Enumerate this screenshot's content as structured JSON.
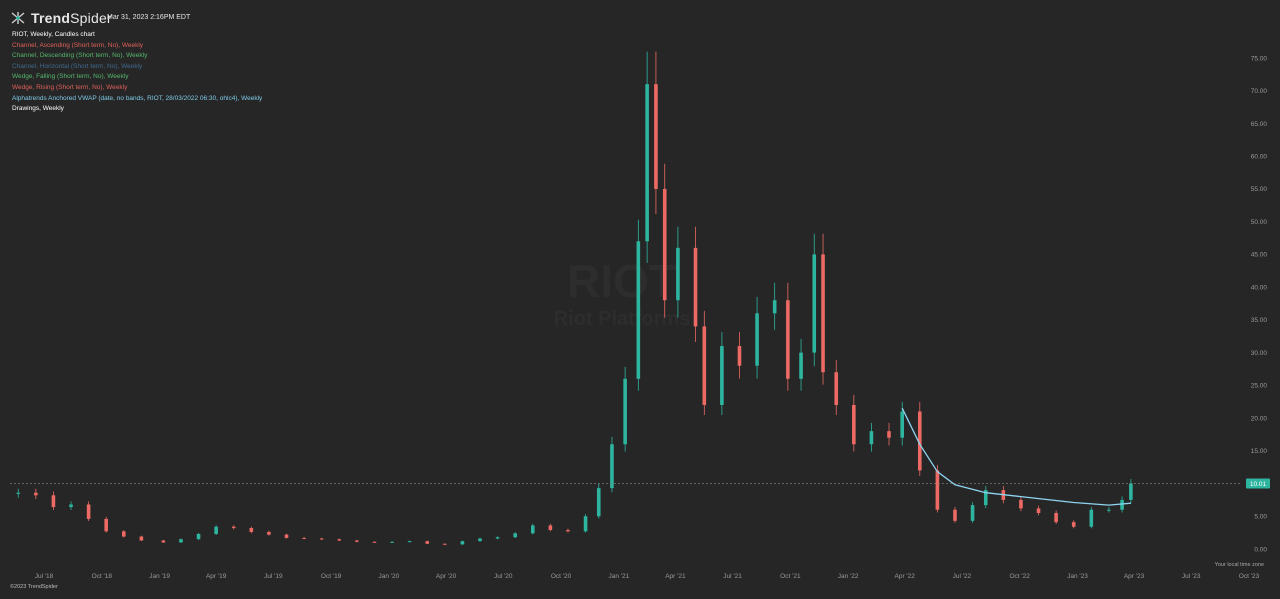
{
  "header": {
    "brand_bold": "Trend",
    "brand_light": "Spider",
    "timestamp": "Mar 31, 2023 2:16PM EDT"
  },
  "legend": [
    {
      "text": "RIOT, Weekly, Candles chart",
      "color": "#ffffff"
    },
    {
      "text": "Channel, Ascending (Short term, No), Weekly",
      "color": "#e0605a"
    },
    {
      "text": "Channel, Descending (Short term, No), Weekly",
      "color": "#55b86d"
    },
    {
      "text": "Channel, Horizontal (Short term, No), Weekly",
      "color": "#3f6a8f"
    },
    {
      "text": "Wedge, Falling (Short term, No), Weekly",
      "color": "#55b86d"
    },
    {
      "text": "Wedge, Rising (Short term, No), Weekly",
      "color": "#e0605a"
    },
    {
      "text": "Alphatrends Anchored VWAP (date, no bands, RIOT, 28/03/2022 06:30, ohlc4), Weekly",
      "color": "#7fcbe8"
    },
    {
      "text": "Drawings, Weekly",
      "color": "#ffffff"
    }
  ],
  "footer": {
    "copyright": "©2023 TrendSpider",
    "timezone_note": "Your local time zone"
  },
  "colors": {
    "up": "#2db5a0",
    "down": "#ec6a63",
    "vwap": "#8fd4f0",
    "axis_text": "#9a9a9a",
    "price_tag_bg": "#2db5a0"
  },
  "chart_data": {
    "type": "candlestick",
    "symbol": "RIOT",
    "interval": "Weekly",
    "y_ticks": [
      "75.00",
      "70.00",
      "65.00",
      "60.00",
      "55.00",
      "50.00",
      "45.00",
      "40.00",
      "35.00",
      "30.00",
      "25.00",
      "20.00",
      "15.00",
      "10.00",
      "5.00",
      "0.00"
    ],
    "ylim": [
      0,
      75
    ],
    "x_ticks": [
      {
        "label": "Jul '18",
        "date": "2018-07-01"
      },
      {
        "label": "Oct '18",
        "date": "2018-10-01"
      },
      {
        "label": "Jan '19",
        "date": "2019-01-01"
      },
      {
        "label": "Apr '19",
        "date": "2019-04-01"
      },
      {
        "label": "Jul '19",
        "date": "2019-07-01"
      },
      {
        "label": "Oct '19",
        "date": "2019-10-01"
      },
      {
        "label": "Jan '20",
        "date": "2020-01-01"
      },
      {
        "label": "Apr '20",
        "date": "2020-04-01"
      },
      {
        "label": "Jul '20",
        "date": "2020-07-01"
      },
      {
        "label": "Oct '20",
        "date": "2020-10-01"
      },
      {
        "label": "Jan '21",
        "date": "2021-01-01"
      },
      {
        "label": "Apr '21",
        "date": "2021-04-01"
      },
      {
        "label": "Jul '21",
        "date": "2021-07-01"
      },
      {
        "label": "Oct '21",
        "date": "2021-10-01"
      },
      {
        "label": "Jan '22",
        "date": "2022-01-01"
      },
      {
        "label": "Apr '22",
        "date": "2022-04-01"
      },
      {
        "label": "Jul '22",
        "date": "2022-07-01"
      },
      {
        "label": "Oct '22",
        "date": "2022-10-01"
      },
      {
        "label": "Jan '23",
        "date": "2023-01-01"
      },
      {
        "label": "Apr '23",
        "date": "2023-04-01"
      },
      {
        "label": "Jul '23",
        "date": "2023-07-01"
      },
      {
        "label": "Oct '23",
        "date": "2023-10-01"
      }
    ],
    "last_price": "10.01",
    "last_price_value": 10.01,
    "watermark": {
      "symbol": "RIOT",
      "name": "Riot Platforms"
    },
    "candles": [
      {
        "date": "2018-05-21",
        "close": 8.6
      },
      {
        "date": "2018-06-18",
        "close": 8.2
      },
      {
        "date": "2018-07-16",
        "close": 6.4
      },
      {
        "date": "2018-08-13",
        "close": 6.8
      },
      {
        "date": "2018-09-10",
        "close": 4.6
      },
      {
        "date": "2018-10-08",
        "close": 2.7
      },
      {
        "date": "2018-11-05",
        "close": 1.9
      },
      {
        "date": "2018-12-03",
        "close": 1.3
      },
      {
        "date": "2019-01-07",
        "close": 1.0
      },
      {
        "date": "2019-02-04",
        "close": 1.5
      },
      {
        "date": "2019-03-04",
        "close": 2.3
      },
      {
        "date": "2019-04-01",
        "close": 3.4
      },
      {
        "date": "2019-04-29",
        "close": 3.2
      },
      {
        "date": "2019-05-27",
        "close": 2.6
      },
      {
        "date": "2019-06-24",
        "close": 2.2
      },
      {
        "date": "2019-07-22",
        "close": 1.7
      },
      {
        "date": "2019-08-19",
        "close": 1.6
      },
      {
        "date": "2019-09-16",
        "close": 1.5
      },
      {
        "date": "2019-10-14",
        "close": 1.3
      },
      {
        "date": "2019-11-11",
        "close": 1.1
      },
      {
        "date": "2019-12-09",
        "close": 1.0
      },
      {
        "date": "2020-01-06",
        "close": 1.1
      },
      {
        "date": "2020-02-03",
        "close": 1.2
      },
      {
        "date": "2020-03-02",
        "close": 0.8
      },
      {
        "date": "2020-03-30",
        "close": 0.7
      },
      {
        "date": "2020-04-27",
        "close": 1.2
      },
      {
        "date": "2020-05-25",
        "close": 1.6
      },
      {
        "date": "2020-06-22",
        "close": 1.8
      },
      {
        "date": "2020-07-20",
        "close": 2.4
      },
      {
        "date": "2020-08-17",
        "close": 3.6
      },
      {
        "date": "2020-09-14",
        "close": 2.9
      },
      {
        "date": "2020-10-12",
        "close": 2.7
      },
      {
        "date": "2020-11-09",
        "close": 5.0
      },
      {
        "date": "2020-11-30",
        "close": 9.3
      },
      {
        "date": "2020-12-21",
        "close": 16.0
      },
      {
        "date": "2021-01-11",
        "close": 26.0
      },
      {
        "date": "2021-02-01",
        "close": 47.0
      },
      {
        "date": "2021-02-15",
        "close": 71.0
      },
      {
        "date": "2021-03-01",
        "close": 55.0
      },
      {
        "date": "2021-03-15",
        "close": 38.0
      },
      {
        "date": "2021-04-05",
        "close": 46.0
      },
      {
        "date": "2021-05-03",
        "close": 34.0
      },
      {
        "date": "2021-05-17",
        "close": 22.0
      },
      {
        "date": "2021-06-14",
        "close": 31.0
      },
      {
        "date": "2021-07-12",
        "close": 28.0
      },
      {
        "date": "2021-08-09",
        "close": 36.0
      },
      {
        "date": "2021-09-06",
        "close": 38.0
      },
      {
        "date": "2021-09-27",
        "close": 26.0
      },
      {
        "date": "2021-10-18",
        "close": 30.0
      },
      {
        "date": "2021-11-08",
        "close": 45.0
      },
      {
        "date": "2021-11-22",
        "close": 27.0
      },
      {
        "date": "2021-12-13",
        "close": 22.0
      },
      {
        "date": "2022-01-10",
        "close": 16.0
      },
      {
        "date": "2022-02-07",
        "close": 18.0
      },
      {
        "date": "2022-03-07",
        "close": 17.0
      },
      {
        "date": "2022-03-28",
        "close": 21.0
      },
      {
        "date": "2022-04-25",
        "close": 12.0
      },
      {
        "date": "2022-05-23",
        "close": 6.0
      },
      {
        "date": "2022-06-20",
        "close": 4.3
      },
      {
        "date": "2022-07-18",
        "close": 6.7
      },
      {
        "date": "2022-08-08",
        "close": 9.0
      },
      {
        "date": "2022-09-05",
        "close": 7.5
      },
      {
        "date": "2022-10-03",
        "close": 6.2
      },
      {
        "date": "2022-10-31",
        "close": 5.5
      },
      {
        "date": "2022-11-28",
        "close": 4.1
      },
      {
        "date": "2022-12-26",
        "close": 3.4
      },
      {
        "date": "2023-01-23",
        "close": 6.0
      },
      {
        "date": "2023-02-20",
        "close": 6.0
      },
      {
        "date": "2023-03-13",
        "close": 7.5
      },
      {
        "date": "2023-03-27",
        "close": 10.01
      }
    ],
    "vwap": [
      {
        "date": "2022-03-28",
        "value": 21.5
      },
      {
        "date": "2022-04-25",
        "value": 16.0
      },
      {
        "date": "2022-05-23",
        "value": 11.8
      },
      {
        "date": "2022-06-20",
        "value": 9.8
      },
      {
        "date": "2022-08-08",
        "value": 8.6
      },
      {
        "date": "2022-10-03",
        "value": 8.0
      },
      {
        "date": "2022-12-26",
        "value": 7.1
      },
      {
        "date": "2023-02-20",
        "value": 6.7
      },
      {
        "date": "2023-03-27",
        "value": 7.0
      }
    ]
  }
}
